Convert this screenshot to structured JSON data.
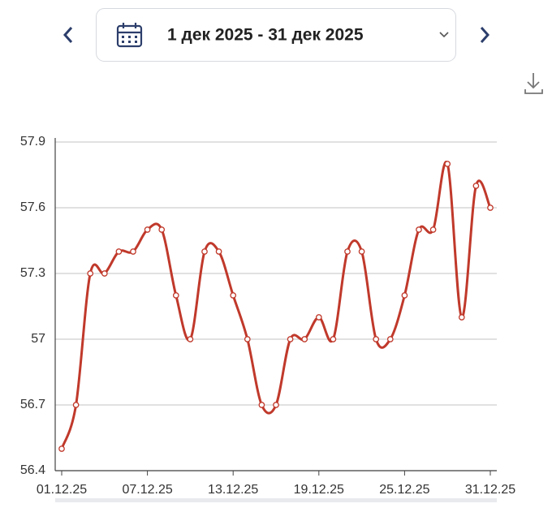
{
  "header": {
    "date_range": "1 дек 2025 - 31 дек 2025"
  },
  "chart_data": {
    "type": "line",
    "categories": [
      "01.12.25",
      null,
      null,
      null,
      null,
      null,
      "07.12.25",
      null,
      null,
      null,
      null,
      null,
      "13.12.25",
      null,
      null,
      null,
      null,
      null,
      "19.12.25",
      null,
      null,
      null,
      null,
      null,
      "25.12.25",
      null,
      null,
      null,
      null,
      null,
      "31.12.25"
    ],
    "values": [
      56.5,
      56.7,
      57.3,
      57.3,
      57.4,
      57.4,
      57.5,
      57.5,
      57.2,
      57.0,
      57.4,
      57.4,
      57.2,
      57.0,
      56.7,
      56.7,
      57.0,
      57.0,
      57.1,
      57.0,
      57.4,
      57.4,
      57.0,
      57.0,
      57.2,
      57.5,
      57.5,
      57.8,
      57.1,
      57.7,
      57.6
    ],
    "color": "#c0392b",
    "ylim": [
      56.4,
      57.9
    ],
    "yticks": [
      56.4,
      56.7,
      57,
      57.3,
      57.6,
      57.9
    ],
    "grid": true
  }
}
